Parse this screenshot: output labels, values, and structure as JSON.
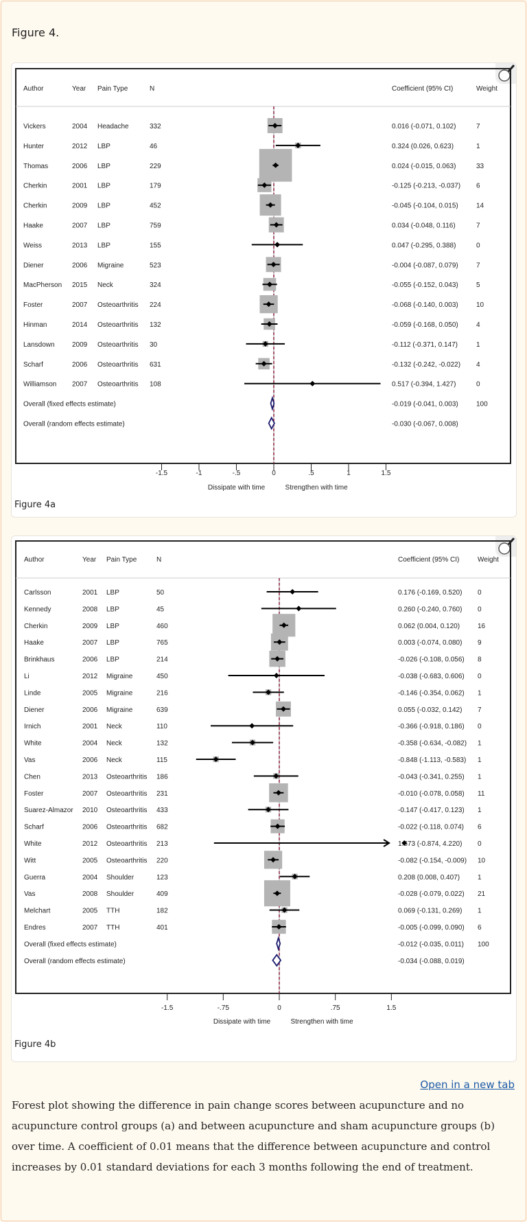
{
  "figure_title": "Figure 4.",
  "open_link": "Open in a new tab",
  "caption": "Forest plot showing the difference in pain change scores between acupuncture and no acupuncture control groups (a) and between acupuncture and sham acupuncture groups (b) over time. A coefficient of 0.01 means that the difference between acupuncture and control increases by 0.01 standard deviations for each 3 months following the end of treatment.",
  "icons": {
    "zoom": "magnifier-icon"
  },
  "chart_data": [
    {
      "type": "forest",
      "label": "Figure 4a",
      "headers": {
        "author": "Author",
        "year": "Year",
        "pain": "Pain Type",
        "n": "N",
        "coef": "Coefficient (95% CI)",
        "weight": "Weight"
      },
      "xticks": [
        "-1.5",
        "-1",
        "-.5",
        "0",
        ".5",
        "1",
        "1.5"
      ],
      "xtick_values": [
        -1.5,
        -1,
        -0.5,
        0,
        0.5,
        1,
        1.5
      ],
      "xlabel_left": "Dissipate with time",
      "xlabel_right": "Strengthen with time",
      "studies": [
        {
          "author": "Vickers",
          "year": "2004",
          "pain": "Headache",
          "n": "332",
          "est": 0.016,
          "lo": -0.071,
          "hi": 0.102,
          "ci": "0.016 (-0.071, 0.102)",
          "weight": "7"
        },
        {
          "author": "Hunter",
          "year": "2012",
          "pain": "LBP",
          "n": "46",
          "est": 0.324,
          "lo": 0.026,
          "hi": 0.623,
          "ci": "0.324 (0.026, 0.623)",
          "weight": "1"
        },
        {
          "author": "Thomas",
          "year": "2006",
          "pain": "LBP",
          "n": "229",
          "est": 0.024,
          "lo": -0.015,
          "hi": 0.063,
          "ci": "0.024 (-0.015, 0.063)",
          "weight": "33"
        },
        {
          "author": "Cherkin",
          "year": "2001",
          "pain": "LBP",
          "n": "179",
          "est": -0.125,
          "lo": -0.213,
          "hi": -0.037,
          "ci": "-0.125 (-0.213, -0.037)",
          "weight": "6"
        },
        {
          "author": "Cherkin",
          "year": "2009",
          "pain": "LBP",
          "n": "452",
          "est": -0.045,
          "lo": -0.104,
          "hi": 0.015,
          "ci": "-0.045 (-0.104, 0.015)",
          "weight": "14"
        },
        {
          "author": "Haake",
          "year": "2007",
          "pain": "LBP",
          "n": "759",
          "est": 0.034,
          "lo": -0.048,
          "hi": 0.116,
          "ci": "0.034 (-0.048, 0.116)",
          "weight": "7"
        },
        {
          "author": "Weiss",
          "year": "2013",
          "pain": "LBP",
          "n": "155",
          "est": 0.047,
          "lo": -0.295,
          "hi": 0.388,
          "ci": "0.047 (-0.295, 0.388)",
          "weight": "0"
        },
        {
          "author": "Diener",
          "year": "2006",
          "pain": "Migraine",
          "n": "523",
          "est": -0.004,
          "lo": -0.087,
          "hi": 0.079,
          "ci": "-0.004 (-0.087, 0.079)",
          "weight": "7"
        },
        {
          "author": "MacPherson",
          "year": "2015",
          "pain": "Neck",
          "n": "324",
          "est": -0.055,
          "lo": -0.152,
          "hi": 0.043,
          "ci": "-0.055 (-0.152, 0.043)",
          "weight": "5"
        },
        {
          "author": "Foster",
          "year": "2007",
          "pain": "Osteoarthritis",
          "n": "224",
          "est": -0.068,
          "lo": -0.14,
          "hi": 0.003,
          "ci": "-0.068 (-0.140, 0.003)",
          "weight": "10"
        },
        {
          "author": "Hinman",
          "year": "2014",
          "pain": "Osteoarthritis",
          "n": "132",
          "est": -0.059,
          "lo": -0.168,
          "hi": 0.05,
          "ci": "-0.059 (-0.168, 0.050)",
          "weight": "4"
        },
        {
          "author": "Lansdown",
          "year": "2009",
          "pain": "Osteoarthritis",
          "n": "30",
          "est": -0.112,
          "lo": -0.371,
          "hi": 0.147,
          "ci": "-0.112 (-0.371, 0.147)",
          "weight": "1"
        },
        {
          "author": "Scharf",
          "year": "2006",
          "pain": "Osteoarthritis",
          "n": "631",
          "est": -0.132,
          "lo": -0.242,
          "hi": -0.022,
          "ci": "-0.132 (-0.242, -0.022)",
          "weight": "4"
        },
        {
          "author": "Williamson",
          "year": "2007",
          "pain": "Osteoarthritis",
          "n": "108",
          "est": 0.517,
          "lo": -0.394,
          "hi": 1.427,
          "ci": "0.517 (-0.394, 1.427)",
          "weight": "0"
        }
      ],
      "overall": [
        {
          "label": "Overall (fixed effects estimate)",
          "est": -0.019,
          "lo": -0.041,
          "hi": 0.003,
          "ci": "-0.019 (-0.041, 0.003)",
          "weight": "100"
        },
        {
          "label": "Overall (random effects estimate)",
          "est": -0.03,
          "lo": -0.067,
          "hi": 0.008,
          "ci": "-0.030 (-0.067, 0.008)",
          "weight": ""
        }
      ],
      "colors": {
        "box": "#b4b4b4",
        "line": "#000000",
        "diamond": "#1a1a6e",
        "ref_line": "#8b1e3f"
      }
    },
    {
      "type": "forest",
      "label": "Figure 4b",
      "headers": {
        "author": "Author",
        "year": "Year",
        "pain": "Pain Type",
        "n": "N",
        "coef": "Coefficient (95% CI)",
        "weight": "Weight"
      },
      "xticks": [
        "-1.5",
        "-.75",
        "0",
        ".75",
        "1.5"
      ],
      "xtick_values": [
        -1.5,
        -0.75,
        0,
        0.75,
        1.5
      ],
      "xlabel_left": "Dissipate with time",
      "xlabel_right": "Strengthen with time",
      "studies": [
        {
          "author": "Carlsson",
          "year": "2001",
          "pain": "LBP",
          "n": "50",
          "est": 0.176,
          "lo": -0.169,
          "hi": 0.52,
          "ci": "0.176 (-0.169, 0.520)",
          "weight": "0"
        },
        {
          "author": "Kennedy",
          "year": "2008",
          "pain": "LBP",
          "n": "45",
          "est": 0.26,
          "lo": -0.24,
          "hi": 0.76,
          "ci": "0.260 (-0.240, 0.760)",
          "weight": "0"
        },
        {
          "author": "Cherkin",
          "year": "2009",
          "pain": "LBP",
          "n": "460",
          "est": 0.062,
          "lo": 0.004,
          "hi": 0.12,
          "ci": "0.062 (0.004, 0.120)",
          "weight": "16"
        },
        {
          "author": "Haake",
          "year": "2007",
          "pain": "LBP",
          "n": "765",
          "est": 0.003,
          "lo": -0.074,
          "hi": 0.08,
          "ci": "0.003 (-0.074, 0.080)",
          "weight": "9"
        },
        {
          "author": "Brinkhaus",
          "year": "2006",
          "pain": "LBP",
          "n": "214",
          "est": -0.026,
          "lo": -0.108,
          "hi": 0.056,
          "ci": "-0.026 (-0.108, 0.056)",
          "weight": "8"
        },
        {
          "author": "Li",
          "year": "2012",
          "pain": "Migraine",
          "n": "450",
          "est": -0.038,
          "lo": -0.683,
          "hi": 0.606,
          "ci": "-0.038 (-0.683, 0.606)",
          "weight": "0"
        },
        {
          "author": "Linde",
          "year": "2005",
          "pain": "Migraine",
          "n": "216",
          "est": -0.146,
          "lo": -0.354,
          "hi": 0.062,
          "ci": "-0.146 (-0.354, 0.062)",
          "weight": "1"
        },
        {
          "author": "Diener",
          "year": "2006",
          "pain": "Migraine",
          "n": "639",
          "est": 0.055,
          "lo": -0.032,
          "hi": 0.142,
          "ci": "0.055 (-0.032, 0.142)",
          "weight": "7"
        },
        {
          "author": "Irnich",
          "year": "2001",
          "pain": "Neck",
          "n": "110",
          "est": -0.366,
          "lo": -0.918,
          "hi": 0.186,
          "ci": "-0.366 (-0.918, 0.186)",
          "weight": "0"
        },
        {
          "author": "White",
          "year": "2004",
          "pain": "Neck",
          "n": "132",
          "est": -0.358,
          "lo": -0.634,
          "hi": -0.082,
          "ci": "-0.358 (-0.634, -0.082)",
          "weight": "1"
        },
        {
          "author": "Vas",
          "year": "2006",
          "pain": "Neck",
          "n": "115",
          "est": -0.848,
          "lo": -1.113,
          "hi": -0.583,
          "ci": "-0.848 (-1.113, -0.583)",
          "weight": "1"
        },
        {
          "author": "Chen",
          "year": "2013",
          "pain": "Osteoarthritis",
          "n": "186",
          "est": -0.043,
          "lo": -0.341,
          "hi": 0.255,
          "ci": "-0.043 (-0.341, 0.255)",
          "weight": "1"
        },
        {
          "author": "Foster",
          "year": "2007",
          "pain": "Osteoarthritis",
          "n": "231",
          "est": -0.01,
          "lo": -0.078,
          "hi": 0.058,
          "ci": "-0.010 (-0.078, 0.058)",
          "weight": "11"
        },
        {
          "author": "Suarez-Almazor",
          "year": "2010",
          "pain": "Osteoarthritis",
          "n": "433",
          "est": -0.147,
          "lo": -0.417,
          "hi": 0.123,
          "ci": "-0.147 (-0.417, 0.123)",
          "weight": "1"
        },
        {
          "author": "Scharf",
          "year": "2006",
          "pain": "Osteoarthritis",
          "n": "682",
          "est": -0.022,
          "lo": -0.118,
          "hi": 0.074,
          "ci": "-0.022 (-0.118, 0.074)",
          "weight": "6"
        },
        {
          "author": "White",
          "year": "2012",
          "pain": "Osteoarthritis",
          "n": "213",
          "est": 1.673,
          "lo": -0.874,
          "hi": 4.22,
          "ci": "1.673 (-0.874, 4.220)",
          "weight": "0"
        },
        {
          "author": "Witt",
          "year": "2005",
          "pain": "Osteoarthritis",
          "n": "220",
          "est": -0.082,
          "lo": -0.154,
          "hi": -0.009,
          "ci": "-0.082 (-0.154, -0.009)",
          "weight": "10"
        },
        {
          "author": "Guerra",
          "year": "2004",
          "pain": "Shoulder",
          "n": "123",
          "est": 0.208,
          "lo": 0.008,
          "hi": 0.407,
          "ci": "0.208 (0.008, 0.407)",
          "weight": "1"
        },
        {
          "author": "Vas",
          "year": "2008",
          "pain": "Shoulder",
          "n": "409",
          "est": -0.028,
          "lo": -0.079,
          "hi": 0.022,
          "ci": "-0.028 (-0.079, 0.022)",
          "weight": "21"
        },
        {
          "author": "Melchart",
          "year": "2005",
          "pain": "TTH",
          "n": "182",
          "est": 0.069,
          "lo": -0.131,
          "hi": 0.269,
          "ci": "0.069 (-0.131, 0.269)",
          "weight": "1"
        },
        {
          "author": "Endres",
          "year": "2007",
          "pain": "TTH",
          "n": "401",
          "est": -0.005,
          "lo": -0.099,
          "hi": 0.09,
          "ci": "-0.005 (-0.099, 0.090)",
          "weight": "6"
        }
      ],
      "overall": [
        {
          "label": "Overall (fixed effects estimate)",
          "est": -0.012,
          "lo": -0.035,
          "hi": 0.011,
          "ci": "-0.012 (-0.035, 0.011)",
          "weight": "100"
        },
        {
          "label": "Overall (random effects estimate)",
          "est": -0.034,
          "lo": -0.088,
          "hi": 0.019,
          "ci": "-0.034 (-0.088, 0.019)",
          "weight": ""
        }
      ],
      "colors": {
        "box": "#b4b4b4",
        "line": "#000000",
        "diamond": "#1a1a6e",
        "ref_line": "#8b1e3f"
      }
    }
  ]
}
